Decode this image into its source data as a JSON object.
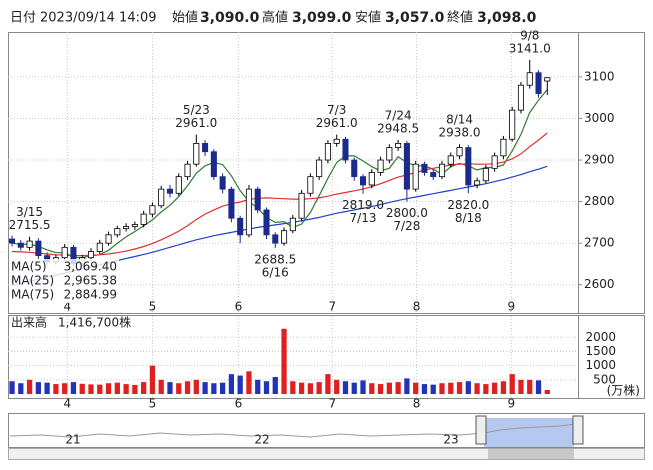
{
  "header": {
    "date_label": "日付",
    "datetime": "2023/09/14 14:09",
    "fields": [
      {
        "label": "始値",
        "value": "3,090.0",
        "color": "#111111"
      },
      {
        "label": "高値",
        "value": "3,099.0",
        "color": "#e00000"
      },
      {
        "label": "安値",
        "value": "3,057.0",
        "color": "#0a8a0a"
      },
      {
        "label": "終値",
        "value": "3,098.0",
        "color": "#111111"
      }
    ]
  },
  "chart_data": {
    "type": "candlestick",
    "open": [
      2710,
      2700,
      2690,
      2705,
      2670,
      2655,
      2665,
      2690,
      2650,
      2665,
      2680,
      2700,
      2720,
      2735,
      2740,
      2745,
      2770,
      2790,
      2830,
      2820,
      2860,
      2890,
      2940,
      2920,
      2860,
      2830,
      2760,
      2720,
      2830,
      2780,
      2720,
      2700,
      2730,
      2760,
      2820,
      2860,
      2900,
      2940,
      2950,
      2900,
      2860,
      2840,
      2870,
      2900,
      2930,
      2940,
      2830,
      2890,
      2870,
      2860,
      2890,
      2910,
      2930,
      2840,
      2850,
      2880,
      2910,
      2950,
      3020,
      3080,
      3110,
      3090
    ],
    "high": [
      2718,
      2708,
      2715.5,
      2712,
      2678,
      2672,
      2698,
      2696,
      2672,
      2688,
      2708,
      2728,
      2742,
      2748,
      2752,
      2778,
      2798,
      2838,
      2840,
      2868,
      2898,
      2961,
      2948,
      2926,
      2868,
      2836,
      2766,
      2840,
      2836,
      2786,
      2726,
      2738,
      2768,
      2828,
      2868,
      2908,
      2948,
      2961,
      2956,
      2906,
      2866,
      2878,
      2908,
      2938,
      2948.5,
      2946,
      2898,
      2896,
      2878,
      2898,
      2918,
      2938,
      2936,
      2858,
      2888,
      2918,
      2958,
      3028,
      3088,
      3141,
      3116,
      3099
    ],
    "low": [
      2692,
      2682,
      2682,
      2662,
      2646,
      2648,
      2658,
      2642,
      2644,
      2658,
      2674,
      2694,
      2714,
      2728,
      2732,
      2738,
      2762,
      2784,
      2810,
      2814,
      2852,
      2884,
      2910,
      2852,
      2820,
      2750,
      2700,
      2714,
      2772,
      2710,
      2688.5,
      2694,
      2724,
      2752,
      2812,
      2852,
      2892,
      2932,
      2892,
      2850,
      2819,
      2832,
      2862,
      2892,
      2922,
      2800,
      2824,
      2862,
      2852,
      2854,
      2882,
      2902,
      2820,
      2832,
      2844,
      2872,
      2902,
      2944,
      3012,
      3072,
      3050,
      3057
    ],
    "close": [
      2700,
      2690,
      2705,
      2670,
      2655,
      2665,
      2690,
      2650,
      2665,
      2680,
      2700,
      2720,
      2735,
      2740,
      2745,
      2770,
      2790,
      2830,
      2820,
      2860,
      2890,
      2940,
      2920,
      2860,
      2830,
      2760,
      2720,
      2830,
      2780,
      2720,
      2700,
      2730,
      2760,
      2820,
      2860,
      2900,
      2940,
      2950,
      2900,
      2860,
      2840,
      2870,
      2900,
      2930,
      2940,
      2830,
      2890,
      2870,
      2860,
      2890,
      2910,
      2930,
      2840,
      2850,
      2880,
      2910,
      2950,
      3020,
      3080,
      3110,
      3060,
      3098
    ],
    "up_color": "#ffffff",
    "down_color": "#1c2a8c",
    "series": [
      {
        "name": "MA(5)",
        "color": "#2e7d2e",
        "latest": "3,069.40",
        "values": [
          2700,
          2697,
          2698,
          2692,
          2684,
          2677,
          2677,
          2666,
          2665,
          2670,
          2672,
          2683,
          2700,
          2715,
          2728,
          2742,
          2756,
          2775,
          2791,
          2812,
          2838,
          2868,
          2886,
          2894,
          2889,
          2862,
          2826,
          2800,
          2784,
          2762,
          2750,
          2752,
          2738,
          2746,
          2774,
          2814,
          2856,
          2894,
          2910,
          2910,
          2898,
          2884,
          2874,
          2880,
          2908,
          2894,
          2886,
          2886,
          2878,
          2866,
          2884,
          2892,
          2886,
          2876,
          2882,
          2882,
          2888,
          2922,
          2962,
          3014,
          3044,
          3069.4
        ]
      },
      {
        "name": "MA(25)",
        "color": "#e03030",
        "latest": "2,965.38",
        "values": [
          2680,
          2679,
          2678,
          2676,
          2674,
          2672,
          2671,
          2670,
          2670,
          2671,
          2672,
          2674,
          2677,
          2681,
          2686,
          2692,
          2699,
          2708,
          2718,
          2729,
          2742,
          2757,
          2770,
          2780,
          2789,
          2795,
          2799,
          2805,
          2808,
          2809,
          2808,
          2807,
          2806,
          2806,
          2807,
          2809,
          2813,
          2818,
          2822,
          2826,
          2830,
          2836,
          2843,
          2851,
          2859,
          2864,
          2870,
          2876,
          2880,
          2884,
          2888,
          2890,
          2891,
          2890,
          2890,
          2891,
          2895,
          2903,
          2915,
          2932,
          2948,
          2965.38
        ]
      },
      {
        "name": "MA(75)",
        "color": "#2040d0",
        "latest": "2,884.99",
        "values": [
          2598,
          2603,
          2608,
          2613,
          2618,
          2623,
          2628,
          2633,
          2638,
          2643,
          2648,
          2653,
          2658,
          2663,
          2668,
          2673,
          2678,
          2684,
          2690,
          2696,
          2702,
          2708,
          2713,
          2718,
          2722,
          2726,
          2730,
          2734,
          2738,
          2741,
          2744,
          2747,
          2750,
          2754,
          2758,
          2762,
          2767,
          2772,
          2776,
          2780,
          2784,
          2788,
          2793,
          2798,
          2803,
          2807,
          2811,
          2815,
          2819,
          2823,
          2827,
          2831,
          2835,
          2839,
          2843,
          2848,
          2853,
          2859,
          2865,
          2872,
          2878,
          2884.99
        ]
      }
    ],
    "annotations": [
      {
        "date": "3/15",
        "value": 2715.5,
        "label": "2715.5"
      },
      {
        "date": "5/23",
        "value": 2961,
        "label": "2961.0"
      },
      {
        "date": "6/16",
        "value": 2688.5,
        "label": "2688.5"
      },
      {
        "date": "7/3",
        "value": 2961,
        "label": "2961.0"
      },
      {
        "date": "7/13",
        "value": 2819,
        "label": "2819.0"
      },
      {
        "date": "7/24",
        "value": 2948.5,
        "label": "2948.5"
      },
      {
        "date": "7/28",
        "value": 2800,
        "label": "2800.0"
      },
      {
        "date": "8/14",
        "value": 2938,
        "label": "2938.0"
      },
      {
        "date": "8/18",
        "value": 2820,
        "label": "2820.0"
      },
      {
        "date": "9/8",
        "value": 3141,
        "label": "3141.0"
      }
    ],
    "xlim": [
      -0.46,
      64.5
    ],
    "xticks": [
      {
        "value": 6.3,
        "label": "4"
      },
      {
        "value": 16,
        "label": "5"
      },
      {
        "value": 25.8,
        "label": "6"
      },
      {
        "value": 36.5,
        "label": "7"
      },
      {
        "value": 46.1,
        "label": "8"
      },
      {
        "value": 56.9,
        "label": "9"
      }
    ],
    "ylim": [
      2532,
      3208
    ],
    "yticks": [
      2600,
      2700,
      2800,
      2900,
      3000,
      3100
    ],
    "grid": true,
    "volume": {
      "title": "出来高",
      "latest_label": "1,416,700株",
      "unit": "(万株)",
      "up_color": "#e02020",
      "down_color": "#2233bb",
      "values": [
        450,
        380,
        500,
        420,
        400,
        350,
        380,
        420,
        360,
        340,
        330,
        380,
        400,
        350,
        320,
        420,
        1000,
        500,
        420,
        380,
        450,
        500,
        420,
        380,
        400,
        700,
        650,
        800,
        500,
        450,
        600,
        2300,
        450,
        400,
        380,
        420,
        700,
        500,
        450,
        400,
        480,
        380,
        350,
        400,
        420,
        550,
        400,
        350,
        330,
        380,
        400,
        420,
        450,
        380,
        350,
        400,
        450,
        700,
        500,
        500,
        480,
        141.67
      ],
      "ylim": [
        0,
        2750
      ],
      "yticks": [
        500,
        1000,
        1500,
        2000
      ]
    }
  },
  "navigator": {
    "labels": [
      "21",
      "22",
      "23"
    ]
  }
}
